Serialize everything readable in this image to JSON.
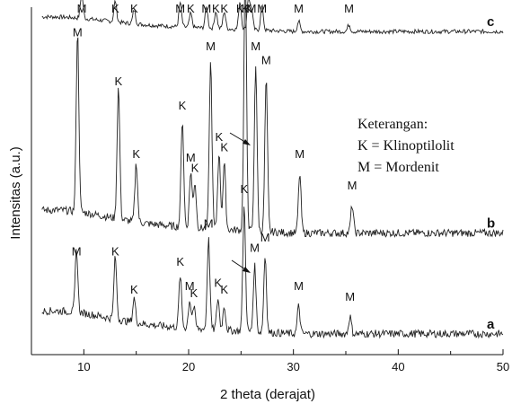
{
  "chart_data": {
    "type": "line",
    "xlabel": "2 theta (derajat)",
    "ylabel": "Intensitas (a.u.)",
    "xlim": [
      5,
      50
    ],
    "xticks": [
      10,
      20,
      30,
      40,
      50
    ],
    "legend": {
      "title": "Keterangan:",
      "entries": [
        "K = Klinoptilolit",
        "M = Mordenit"
      ]
    },
    "series": [
      {
        "name": "c",
        "baseline": 0.93,
        "peaks": [
          {
            "x": 9.8,
            "h": 0.07,
            "label": "M"
          },
          {
            "x": 13.0,
            "h": 0.06,
            "label": "K"
          },
          {
            "x": 14.8,
            "h": 0.04,
            "label": "K"
          },
          {
            "x": 19.2,
            "h": 0.07,
            "label": "M"
          },
          {
            "x": 20.2,
            "h": 0.04,
            "label": "K"
          },
          {
            "x": 21.7,
            "h": 0.06,
            "label": "M"
          },
          {
            "x": 22.6,
            "h": 0.05,
            "label": "K"
          },
          {
            "x": 23.4,
            "h": 0.05,
            "label": "K"
          },
          {
            "x": 24.9,
            "h": 0.08,
            "label": "K"
          },
          {
            "x": 25.7,
            "h": 0.09,
            "label": "K"
          },
          {
            "x": 26.0,
            "h": 0.06,
            "label": "M"
          },
          {
            "x": 27.0,
            "h": 0.07,
            "label": "M"
          },
          {
            "x": 30.5,
            "h": 0.03,
            "label": "M"
          },
          {
            "x": 35.3,
            "h": 0.02,
            "label": "M"
          }
        ]
      },
      {
        "name": "b",
        "baseline": 0.35,
        "peaks": [
          {
            "x": 9.4,
            "h": 0.52,
            "label": "M"
          },
          {
            "x": 13.3,
            "h": 0.38,
            "label": "K"
          },
          {
            "x": 15.0,
            "h": 0.17,
            "label": "K"
          },
          {
            "x": 19.4,
            "h": 0.31,
            "label": "K"
          },
          {
            "x": 20.2,
            "h": 0.16,
            "label": "M"
          },
          {
            "x": 20.6,
            "h": 0.13,
            "label": "K"
          },
          {
            "x": 22.1,
            "h": 0.48,
            "label": "M"
          },
          {
            "x": 22.9,
            "h": 0.22,
            "label": "K"
          },
          {
            "x": 23.4,
            "h": 0.19,
            "label": "K"
          },
          {
            "x": 25.4,
            "h": 0.75,
            "label": "K"
          },
          {
            "x": 26.4,
            "h": 0.48,
            "label": "M"
          },
          {
            "x": 27.4,
            "h": 0.44,
            "label": "M"
          },
          {
            "x": 30.6,
            "h": 0.17,
            "label": "M"
          },
          {
            "x": 35.6,
            "h": 0.08,
            "label": "M"
          }
        ]
      },
      {
        "name": "a",
        "baseline": 0.06,
        "peaks": [
          {
            "x": 9.3,
            "h": 0.18,
            "label": "M"
          },
          {
            "x": 13.0,
            "h": 0.18,
            "label": "K"
          },
          {
            "x": 14.8,
            "h": 0.07,
            "label": "K"
          },
          {
            "x": 19.2,
            "h": 0.15,
            "label": "K"
          },
          {
            "x": 20.1,
            "h": 0.08,
            "label": "M"
          },
          {
            "x": 20.5,
            "h": 0.06,
            "label": "K"
          },
          {
            "x": 21.9,
            "h": 0.26,
            "label": "M"
          },
          {
            "x": 22.8,
            "h": 0.09,
            "label": "K"
          },
          {
            "x": 23.4,
            "h": 0.07,
            "label": "K"
          },
          {
            "x": 25.3,
            "h": 0.36,
            "label": "K"
          },
          {
            "x": 26.3,
            "h": 0.19,
            "label": "M"
          },
          {
            "x": 27.3,
            "h": 0.22,
            "label": "M"
          },
          {
            "x": 30.5,
            "h": 0.08,
            "label": "M"
          },
          {
            "x": 35.4,
            "h": 0.05,
            "label": "M"
          }
        ]
      }
    ]
  }
}
